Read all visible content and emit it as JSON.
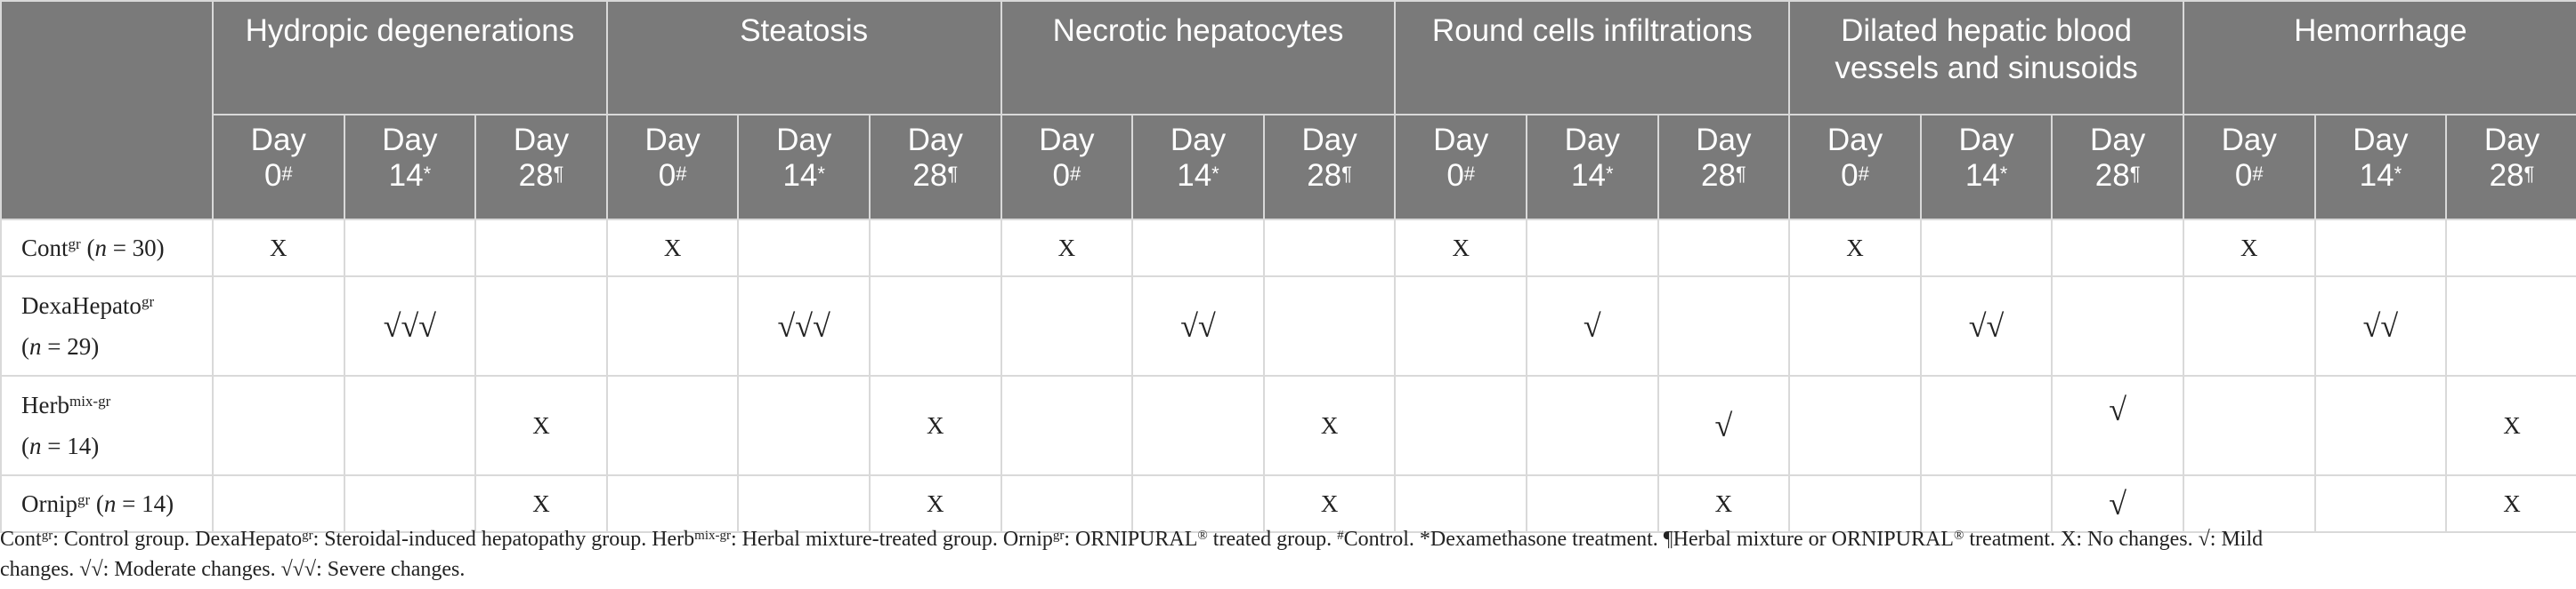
{
  "columns": {
    "groups": [
      "Hydropic degenerations",
      "Steatosis",
      "Necrotic hepatocytes",
      "Round cells infiltrations",
      "Dilated hepatic blood vessels and sinusoids",
      "Hemorrhage"
    ],
    "days": [
      {
        "label": "Day 0",
        "mark": "#"
      },
      {
        "label": "Day 14",
        "mark": "*"
      },
      {
        "label": "Day 28",
        "mark": "¶"
      }
    ]
  },
  "rows": [
    {
      "name": "Cont",
      "sup": "gr",
      "n_label": "(n = 30)",
      "n_letter": "n",
      "n_rest": " = 30)",
      "values": [
        "X",
        "",
        "",
        "X",
        "",
        "",
        "X",
        "",
        "",
        "X",
        "",
        "",
        "X",
        "",
        "",
        "X",
        "",
        ""
      ]
    },
    {
      "name": "DexaHepato",
      "sup": "gr",
      "n_letter": "n",
      "n_rest": " = 29)",
      "values": [
        "",
        "√√√",
        "",
        "",
        "√√√",
        "",
        "",
        "√√",
        "",
        "",
        "√",
        "",
        "",
        "√√",
        "",
        "",
        "√√",
        ""
      ]
    },
    {
      "name": "Herb",
      "sup": "mix-gr",
      "n_letter": "n",
      "n_rest": " = 14)",
      "values": [
        "",
        "",
        "X",
        "",
        "",
        "X",
        "",
        "",
        "X",
        "",
        "",
        "√",
        "",
        "",
        "√",
        "",
        "",
        "X"
      ]
    },
    {
      "name": "Ornip",
      "sup": "gr",
      "n_letter": "n",
      "n_rest": " = 14)",
      "values": [
        "",
        "",
        "X",
        "",
        "",
        "X",
        "",
        "",
        "X",
        "",
        "",
        "X",
        "",
        "",
        "√",
        "",
        "",
        "X"
      ]
    }
  ],
  "footnote": {
    "line1_parts": [
      {
        "t": "Cont"
      },
      {
        "s": "gr"
      },
      {
        "t": ": Control group. DexaHepato"
      },
      {
        "s": "gr"
      },
      {
        "t": ": Steroidal-induced hepatopathy group. Herb"
      },
      {
        "s": "mix-gr"
      },
      {
        "t": ": Herbal mixture-treated group. Ornip"
      },
      {
        "s": "gr"
      },
      {
        "t": ": ORNIPURAL"
      },
      {
        "s": "®"
      },
      {
        "t": " treated group. "
      },
      {
        "s": "#"
      },
      {
        "t": "Control. *Dexamethasone treatment. ¶Herbal mixture or ORNIPURAL"
      },
      {
        "s": "®"
      },
      {
        "t": " treatment. X: No changes. √: Mild"
      }
    ],
    "line2": "changes. √√: Moderate changes. √√√: Severe changes."
  }
}
